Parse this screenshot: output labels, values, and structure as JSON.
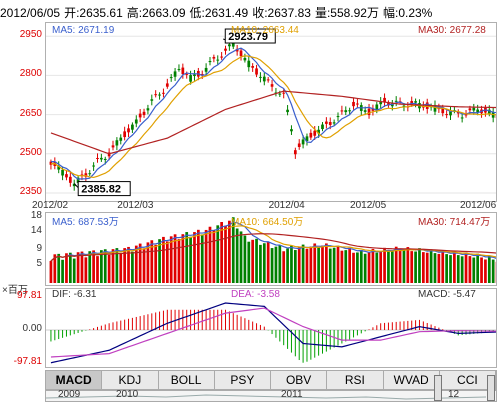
{
  "header": {
    "date": "2012/06/05",
    "open": "开:2635.61",
    "high": "高:2663.09",
    "low": "低:2631.49",
    "close": "收:2637.83",
    "volume": "量:558.92万",
    "change": "幅:0.23%"
  },
  "price_panel": {
    "ma5": "MA5: 2671.19",
    "ma10": "MA10: 2663.44",
    "ma30": "MA30: 2677.28",
    "y_ticks": [
      "2950",
      "2800",
      "2650",
      "2500",
      "2350"
    ],
    "ylim": [
      2350,
      2970
    ],
    "x_ticks": [
      "2012/02",
      "2012/03",
      "2012/04",
      "2012/05",
      "2012/06"
    ],
    "x_tick_idx": [
      0,
      22,
      61,
      82,
      113
    ],
    "high_callout": "2923.79",
    "low_callout": "2385.82",
    "colors": {
      "up": "#e00000",
      "down": "#008000",
      "ma5": "#3a5fcd",
      "ma10": "#e0a000",
      "ma30": "#b22222"
    }
  },
  "volume_panel": {
    "ma5": "MA5: 687.53万",
    "ma10": "MA10: 664.50万",
    "ma30": "MA30: 714.47万",
    "y_ticks": [
      "18",
      "14",
      "9",
      "5"
    ],
    "ylim": [
      0,
      18
    ]
  },
  "macd_panel": {
    "unit": "×百万",
    "dif": "DIF: -6.31",
    "dea": "DEA: -3.58",
    "macd": "MACD: -5.47",
    "y_ticks": [
      "97.81",
      "0.00",
      "-97.81"
    ]
  },
  "tabs": [
    "MACD",
    "KDJ",
    "BOLL",
    "PSY",
    "OBV",
    "RSI",
    "WVAD",
    "CCI"
  ],
  "navigator": {
    "labels": [
      "2009",
      "2010",
      "2011",
      "12"
    ]
  },
  "chart_data": {
    "type": "candlestick",
    "n": 116,
    "title": "",
    "xlabel": "",
    "ylabel": "",
    "price_keys": [
      [
        0,
        2470
      ],
      [
        3,
        2430
      ],
      [
        6,
        2386
      ],
      [
        9,
        2420
      ],
      [
        12,
        2470
      ],
      [
        15,
        2500
      ],
      [
        18,
        2560
      ],
      [
        22,
        2620
      ],
      [
        26,
        2700
      ],
      [
        30,
        2760
      ],
      [
        33,
        2830
      ],
      [
        36,
        2790
      ],
      [
        39,
        2810
      ],
      [
        42,
        2860
      ],
      [
        45,
        2890
      ],
      [
        47,
        2924
      ],
      [
        50,
        2860
      ],
      [
        54,
        2800
      ],
      [
        57,
        2760
      ],
      [
        60,
        2720
      ],
      [
        62,
        2600
      ],
      [
        63,
        2510
      ],
      [
        66,
        2560
      ],
      [
        70,
        2600
      ],
      [
        74,
        2640
      ],
      [
        78,
        2690
      ],
      [
        82,
        2660
      ],
      [
        86,
        2700
      ],
      [
        90,
        2690
      ],
      [
        94,
        2690
      ],
      [
        98,
        2680
      ],
      [
        102,
        2660
      ],
      [
        106,
        2650
      ],
      [
        110,
        2670
      ],
      [
        113,
        2660
      ],
      [
        115,
        2640
      ]
    ],
    "vol_keys": [
      [
        0,
        6
      ],
      [
        10,
        7
      ],
      [
        20,
        8
      ],
      [
        30,
        11
      ],
      [
        40,
        13
      ],
      [
        47,
        16
      ],
      [
        50,
        11
      ],
      [
        60,
        8
      ],
      [
        70,
        9
      ],
      [
        80,
        7
      ],
      [
        90,
        8
      ],
      [
        100,
        7
      ],
      [
        110,
        6
      ],
      [
        115,
        5
      ]
    ],
    "ma10_offset": -40,
    "ma30_keys": [
      [
        0,
        2580
      ],
      [
        15,
        2500
      ],
      [
        30,
        2560
      ],
      [
        45,
        2670
      ],
      [
        60,
        2740
      ],
      [
        75,
        2720
      ],
      [
        90,
        2690
      ],
      [
        105,
        2680
      ],
      [
        115,
        2677
      ]
    ],
    "macd_dif_keys": [
      [
        0,
        -97
      ],
      [
        15,
        -60
      ],
      [
        30,
        20
      ],
      [
        45,
        80
      ],
      [
        55,
        70
      ],
      [
        65,
        -40
      ],
      [
        75,
        -50
      ],
      [
        85,
        -20
      ],
      [
        95,
        10
      ],
      [
        105,
        -10
      ],
      [
        115,
        -6
      ]
    ],
    "macd_dea_keys": [
      [
        0,
        -80
      ],
      [
        15,
        -70
      ],
      [
        30,
        -10
      ],
      [
        45,
        50
      ],
      [
        55,
        65
      ],
      [
        65,
        10
      ],
      [
        75,
        -30
      ],
      [
        85,
        -30
      ],
      [
        95,
        -5
      ],
      [
        105,
        -2
      ],
      [
        115,
        -3.58
      ]
    ]
  }
}
